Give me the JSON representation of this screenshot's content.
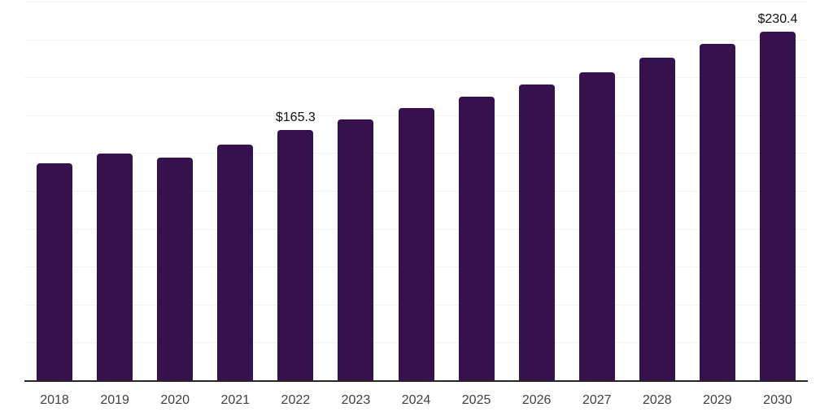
{
  "chart_data": {
    "type": "bar",
    "title": "",
    "xlabel": "",
    "ylabel": "",
    "categories": [
      "2018",
      "2019",
      "2020",
      "2021",
      "2022",
      "2023",
      "2024",
      "2025",
      "2026",
      "2027",
      "2028",
      "2029",
      "2030"
    ],
    "values": [
      143.5,
      149.9,
      147.0,
      155.6,
      165.3,
      172.5,
      179.8,
      187.3,
      195.5,
      203.6,
      212.8,
      222.3,
      230.4
    ],
    "data_labels": [
      "",
      "",
      "",
      "",
      "$165.3",
      "",
      "",
      "",
      "",
      "",
      "",
      "",
      "$230.4"
    ],
    "ylim": [
      0,
      250
    ],
    "grid_interval": 25,
    "grid": "horizontal-only",
    "legend_position": "none",
    "colors": {
      "bar": "#36114e",
      "background": "#ffffff",
      "gridline": "#f2f2f2",
      "axis_line": "#262626",
      "tick_label": "#404040",
      "data_label": "#111111"
    }
  }
}
